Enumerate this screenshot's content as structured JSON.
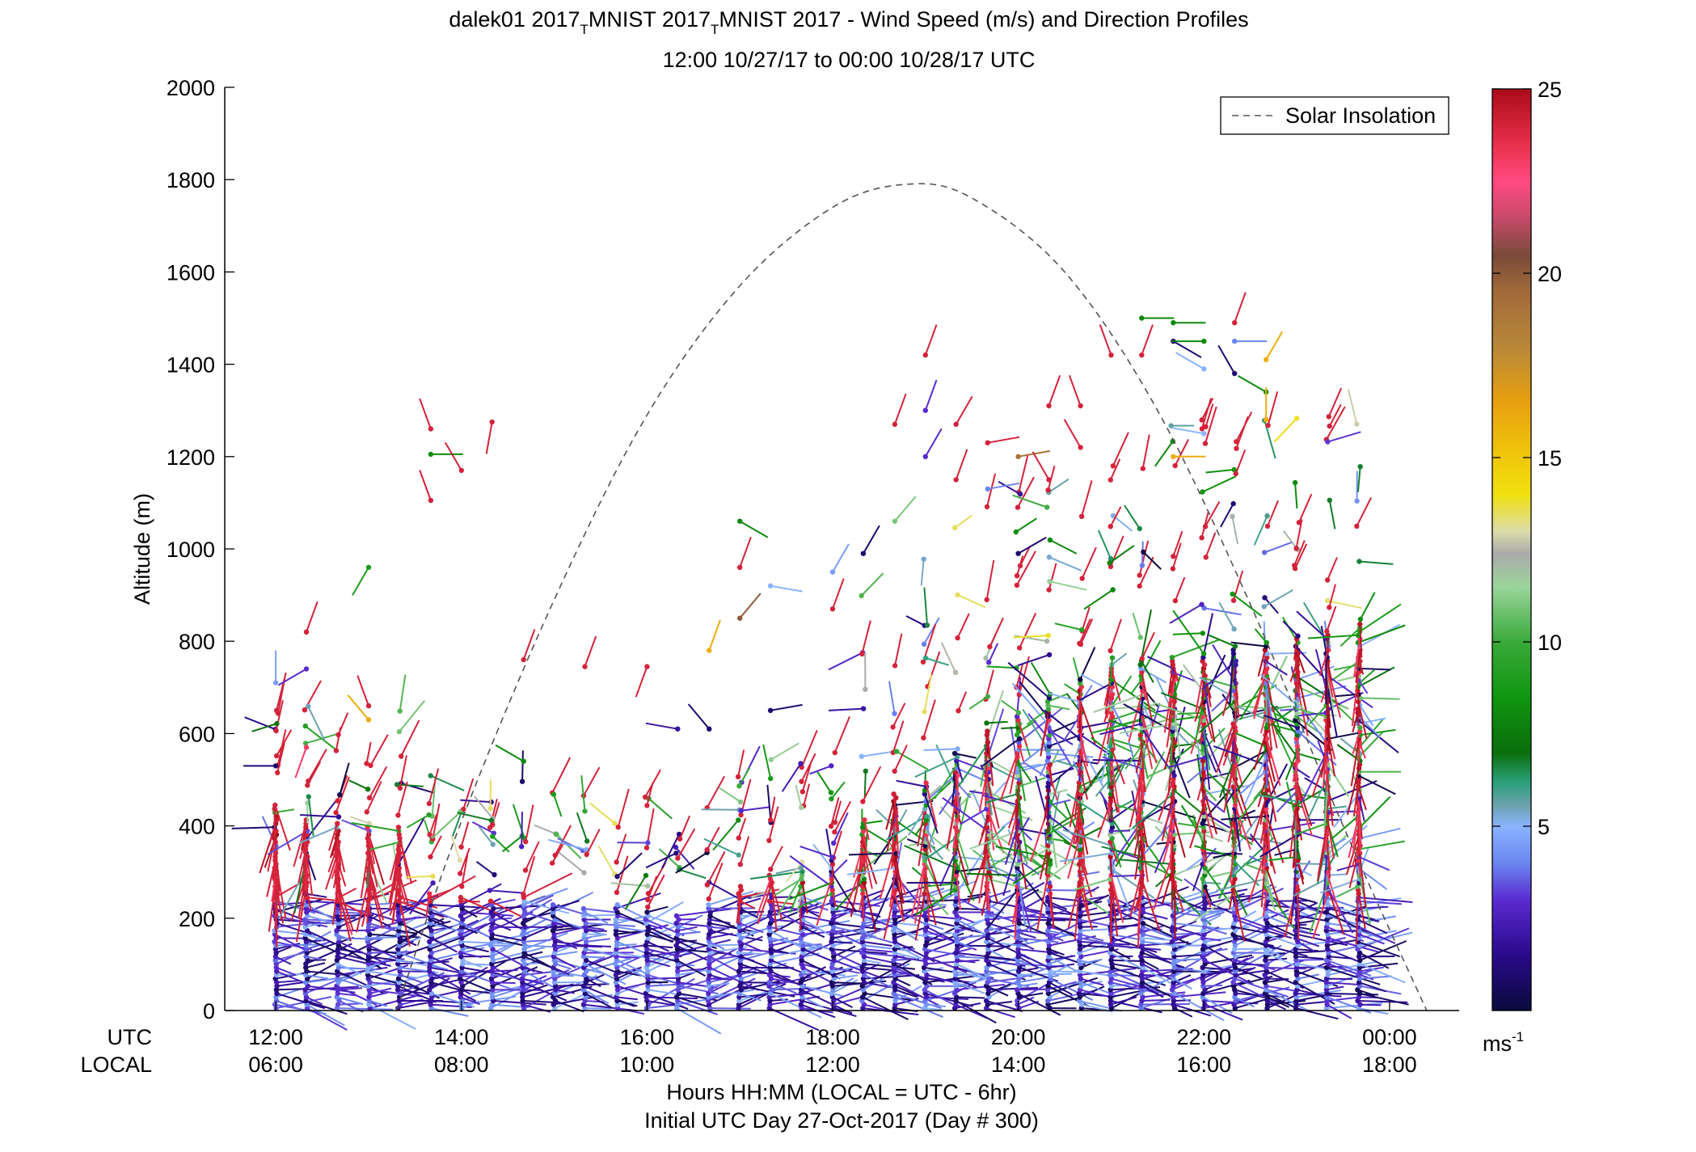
{
  "title_line1_a": "dalek01 2017",
  "title_sub_t1": "T",
  "title_line1_b": "MNIST 2017",
  "title_sub_t2": "T",
  "title_line1_c": "MNIST 2017 - Wind Speed (m/s) and Direction Profiles",
  "title_line2": "12:00 10/27/17 to 00:00 10/28/17  UTC",
  "row_label_utc": "UTC",
  "row_label_local": "LOCAL",
  "xlabel_line1": "Hours HH:MM  (LOCAL = UTC - 6hr)",
  "xlabel_line2": "Initial UTC Day 27-Oct-2017 (Day # 300)",
  "colorbar_unit_base": "ms",
  "colorbar_unit_exp": "-1",
  "chart_data": {
    "type": "scatter",
    "ylabel": "Altitude (m)",
    "ylim": [
      0,
      2000
    ],
    "yticks": [
      "0",
      "200",
      "400",
      "600",
      "800",
      "1000",
      "1200",
      "1400",
      "1600",
      "1800",
      "2000"
    ],
    "xlim_hours_utc": [
      11.45,
      24.75
    ],
    "xticks_hours": [
      12,
      14,
      16,
      18,
      20,
      22,
      24
    ],
    "xtick_labels_utc": [
      "12:00",
      "14:00",
      "16:00",
      "18:00",
      "20:00",
      "22:00",
      "00:00"
    ],
    "xtick_labels_local": [
      "06:00",
      "08:00",
      "10:00",
      "12:00",
      "14:00",
      "16:00",
      "18:00"
    ],
    "legend": {
      "label": "Solar Insolation",
      "placement": "top-right"
    },
    "solar_insolation": {
      "style": "dashed",
      "color": "#555555",
      "x_hours": [
        13.3,
        14.0,
        15.0,
        16.0,
        17.0,
        18.0,
        18.8,
        19.5,
        20.5,
        21.5,
        22.5,
        23.5,
        24.4
      ],
      "y_m": [
        0,
        410,
        890,
        1290,
        1570,
        1740,
        1790,
        1760,
        1600,
        1300,
        880,
        400,
        0
      ]
    },
    "colorbar": {
      "min": 0,
      "max": 25,
      "ticks": [
        "5",
        "10",
        "15",
        "20",
        "25"
      ],
      "stops": [
        [
          0,
          "#0a0a3c"
        ],
        [
          1.5,
          "#2a0a8a"
        ],
        [
          3,
          "#5a2ad0"
        ],
        [
          4,
          "#6a86f0"
        ],
        [
          5,
          "#8ab4ff"
        ],
        [
          5.6,
          "#6aa0a8"
        ],
        [
          6.2,
          "#2aa07a"
        ],
        [
          7,
          "#0a6e0a"
        ],
        [
          8.5,
          "#109610"
        ],
        [
          10,
          "#3aaa3a"
        ],
        [
          11.5,
          "#9cd49c"
        ],
        [
          12.4,
          "#aaaaaa"
        ],
        [
          13,
          "#dcdcaa"
        ],
        [
          14,
          "#f0e010"
        ],
        [
          15,
          "#f0c80a"
        ],
        [
          16.5,
          "#e8a010"
        ],
        [
          18,
          "#b8883a"
        ],
        [
          19.5,
          "#a06a3a"
        ],
        [
          20.5,
          "#7a4a3a"
        ],
        [
          21.5,
          "#c84a6a"
        ],
        [
          22.5,
          "#ff4a80"
        ],
        [
          23.5,
          "#e8304a"
        ],
        [
          25,
          "#aa0a1a"
        ]
      ]
    },
    "profiles": {
      "times_hours_utc": [
        12.0,
        12.33,
        12.67,
        13.0,
        13.33,
        13.67,
        14.0,
        14.33,
        14.67,
        15.0,
        15.33,
        15.67,
        16.0,
        16.33,
        16.67,
        17.0,
        17.33,
        17.67,
        18.0,
        18.33,
        18.67,
        19.0,
        19.33,
        19.67,
        20.0,
        20.33,
        20.67,
        21.0,
        21.33,
        21.67,
        22.0,
        22.33,
        22.67,
        23.0,
        23.33,
        23.67
      ],
      "max_altitude_m": [
        450,
        420,
        410,
        400,
        400,
        260,
        250,
        240,
        250,
        230,
        220,
        230,
        220,
        210,
        230,
        270,
        300,
        310,
        330,
        420,
        470,
        500,
        560,
        610,
        650,
        690,
        720,
        750,
        760,
        770,
        780,
        790,
        800,
        810,
        820,
        840
      ],
      "upper_points": [
        {
          "t": 12.0,
          "z": 710,
          "speed": 4.5,
          "dir": 0
        },
        {
          "t": 12.0,
          "z": 530,
          "speed": 1.0,
          "dir": 270
        },
        {
          "t": 12.33,
          "z": 820,
          "speed": 24,
          "dir": 20
        },
        {
          "t": 12.33,
          "z": 740,
          "speed": 3,
          "dir": 240
        },
        {
          "t": 12.33,
          "z": 570,
          "speed": 23,
          "dir": 200
        },
        {
          "t": 13.0,
          "z": 960,
          "speed": 9,
          "dir": 210
        },
        {
          "t": 13.0,
          "z": 660,
          "speed": 24,
          "dir": 340
        },
        {
          "t": 13.0,
          "z": 630,
          "speed": 16,
          "dir": 320
        },
        {
          "t": 13.67,
          "z": 1260,
          "speed": 24,
          "dir": 340
        },
        {
          "t": 13.67,
          "z": 1205,
          "speed": 8,
          "dir": 90
        },
        {
          "t": 13.67,
          "z": 1105,
          "speed": 24,
          "dir": 340
        },
        {
          "t": 14.0,
          "z": 1170,
          "speed": 24,
          "dir": 330
        },
        {
          "t": 14.33,
          "z": 1275,
          "speed": 24,
          "dir": 190
        },
        {
          "t": 14.67,
          "z": 760,
          "speed": 24,
          "dir": 20
        },
        {
          "t": 14.67,
          "z": 540,
          "speed": 8,
          "dir": 300
        },
        {
          "t": 15.33,
          "z": 745,
          "speed": 24,
          "dir": 20
        },
        {
          "t": 16.0,
          "z": 745,
          "speed": 24,
          "dir": 200
        },
        {
          "t": 16.33,
          "z": 610,
          "speed": 2,
          "dir": 280
        },
        {
          "t": 16.67,
          "z": 780,
          "speed": 16,
          "dir": 20
        },
        {
          "t": 16.67,
          "z": 610,
          "speed": 1,
          "dir": 320
        },
        {
          "t": 17.0,
          "z": 1060,
          "speed": 8,
          "dir": 120
        },
        {
          "t": 17.0,
          "z": 960,
          "speed": 24,
          "dir": 20
        },
        {
          "t": 17.0,
          "z": 850,
          "speed": 20,
          "dir": 40
        },
        {
          "t": 17.33,
          "z": 920,
          "speed": 5,
          "dir": 100
        },
        {
          "t": 17.33,
          "z": 650,
          "speed": 1,
          "dir": 80
        },
        {
          "t": 18.0,
          "z": 950,
          "speed": 4.5,
          "dir": 30
        },
        {
          "t": 18.0,
          "z": 870,
          "speed": 24,
          "dir": 20
        },
        {
          "t": 18.33,
          "z": 990,
          "speed": 1,
          "dir": 30
        },
        {
          "t": 18.67,
          "z": 1270,
          "speed": 24,
          "dir": 20
        },
        {
          "t": 18.67,
          "z": 1060,
          "speed": 11,
          "dir": 40
        },
        {
          "t": 19.0,
          "z": 1420,
          "speed": 24,
          "dir": 20
        },
        {
          "t": 19.0,
          "z": 1300,
          "speed": 3,
          "dir": 20
        },
        {
          "t": 19.0,
          "z": 1200,
          "speed": 3,
          "dir": 30
        },
        {
          "t": 19.33,
          "z": 1270,
          "speed": 24,
          "dir": 30
        },
        {
          "t": 19.33,
          "z": 1150,
          "speed": 24,
          "dir": 20
        },
        {
          "t": 19.67,
          "z": 1230,
          "speed": 24,
          "dir": 80
        },
        {
          "t": 19.67,
          "z": 1130,
          "speed": 4,
          "dir": 80
        },
        {
          "t": 20.0,
          "z": 1200,
          "speed": 19,
          "dir": 80
        },
        {
          "t": 20.0,
          "z": 990,
          "speed": 1,
          "dir": 60
        },
        {
          "t": 20.33,
          "z": 1310,
          "speed": 24,
          "dir": 20
        },
        {
          "t": 20.33,
          "z": 1150,
          "speed": 24,
          "dir": 330
        },
        {
          "t": 20.67,
          "z": 1310,
          "speed": 24,
          "dir": 340
        },
        {
          "t": 20.67,
          "z": 1220,
          "speed": 24,
          "dir": 330
        },
        {
          "t": 21.0,
          "z": 1420,
          "speed": 24,
          "dir": 340
        },
        {
          "t": 21.33,
          "z": 1500,
          "speed": 8,
          "dir": 90
        },
        {
          "t": 21.33,
          "z": 1420,
          "speed": 24,
          "dir": 20
        },
        {
          "t": 21.67,
          "z": 1490,
          "speed": 8,
          "dir": 90
        },
        {
          "t": 21.67,
          "z": 1450,
          "speed": 1,
          "dir": 120
        },
        {
          "t": 21.67,
          "z": 1200,
          "speed": 16,
          "dir": 90
        },
        {
          "t": 22.0,
          "z": 1450,
          "speed": 8,
          "dir": 270
        },
        {
          "t": 22.0,
          "z": 1390,
          "speed": 5,
          "dir": 300
        },
        {
          "t": 22.0,
          "z": 1250,
          "speed": 5,
          "dir": 280
        },
        {
          "t": 22.33,
          "z": 1490,
          "speed": 24,
          "dir": 20
        },
        {
          "t": 22.33,
          "z": 1380,
          "speed": 1,
          "dir": 330
        },
        {
          "t": 22.33,
          "z": 1450,
          "speed": 4,
          "dir": 90
        },
        {
          "t": 22.67,
          "z": 1410,
          "speed": 16,
          "dir": 30
        },
        {
          "t": 22.67,
          "z": 1340,
          "speed": 8,
          "dir": 300
        },
        {
          "t": 22.67,
          "z": 1280,
          "speed": 16,
          "dir": 0
        }
      ]
    }
  }
}
